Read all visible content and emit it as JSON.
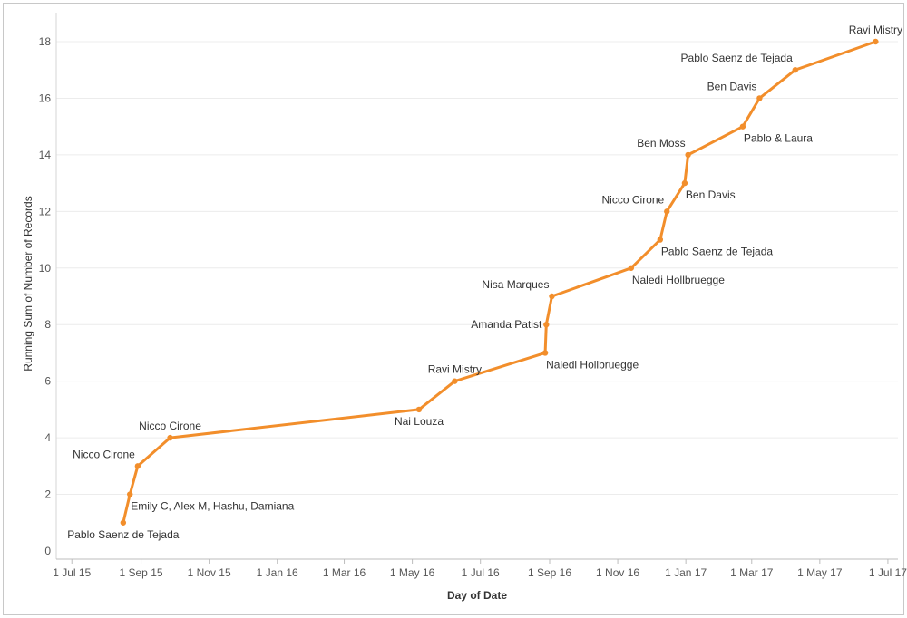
{
  "chart_data": {
    "type": "line",
    "xlabel": "Day of Date",
    "ylabel": "Running Sum of Number of Records",
    "ylim": [
      0,
      18
    ],
    "yticks": [
      0,
      2,
      4,
      6,
      8,
      10,
      12,
      14,
      16,
      18
    ],
    "xlim": [
      "2015-06-17",
      "2017-07-10"
    ],
    "xticks": [
      {
        "date": "2015-07-01",
        "label": "1 Jul 15"
      },
      {
        "date": "2015-09-01",
        "label": "1 Sep 15"
      },
      {
        "date": "2015-11-01",
        "label": "1 Nov 15"
      },
      {
        "date": "2016-01-01",
        "label": "1 Jan 16"
      },
      {
        "date": "2016-03-01",
        "label": "1 Mar 16"
      },
      {
        "date": "2016-05-01",
        "label": "1 May 16"
      },
      {
        "date": "2016-07-01",
        "label": "1 Jul 16"
      },
      {
        "date": "2016-09-01",
        "label": "1 Sep 16"
      },
      {
        "date": "2016-11-01",
        "label": "1 Nov 16"
      },
      {
        "date": "2017-01-01",
        "label": "1 Jan 17"
      },
      {
        "date": "2017-03-01",
        "label": "1 Mar 17"
      },
      {
        "date": "2017-05-01",
        "label": "1 May 17"
      },
      {
        "date": "2017-07-01",
        "label": "1 Jul 17"
      }
    ],
    "grid": true,
    "color": "#F28E2B",
    "series": [
      {
        "points": [
          {
            "x": "2015-08-16",
            "y": 1,
            "label": "Pablo Saenz de Tejada",
            "label_pos": "below"
          },
          {
            "x": "2015-08-22",
            "y": 2,
            "label": "Emily C, Alex M, Hashu, Damiana",
            "label_pos": "below-right"
          },
          {
            "x": "2015-08-29",
            "y": 3,
            "label": "Nicco Cirone",
            "label_pos": "above-left"
          },
          {
            "x": "2015-09-27",
            "y": 4,
            "label": "Nicco Cirone",
            "label_pos": "above"
          },
          {
            "x": "2016-05-07",
            "y": 5,
            "label": "Nai Louza",
            "label_pos": "below"
          },
          {
            "x": "2016-06-08",
            "y": 6,
            "label": "Ravi Mistry",
            "label_pos": "above"
          },
          {
            "x": "2016-08-28",
            "y": 7,
            "label": "Naledi Hollbruegge",
            "label_pos": "below-right"
          },
          {
            "x": "2016-08-29",
            "y": 8,
            "label": "Amanda Patist",
            "label_pos": "left"
          },
          {
            "x": "2016-09-03",
            "y": 9,
            "label": "Nisa Marques",
            "label_pos": "above-left"
          },
          {
            "x": "2016-11-13",
            "y": 10,
            "label": "Naledi Hollbruegge",
            "label_pos": "below-right"
          },
          {
            "x": "2016-12-09",
            "y": 11,
            "label": "Pablo Saenz de Tejada",
            "label_pos": "below-right"
          },
          {
            "x": "2016-12-15",
            "y": 12,
            "label": "Nicco Cirone",
            "label_pos": "above-left"
          },
          {
            "x": "2016-12-31",
            "y": 13,
            "label": "Ben Davis",
            "label_pos": "below-right"
          },
          {
            "x": "2017-01-03",
            "y": 14,
            "label": "Ben Moss",
            "label_pos": "above-left"
          },
          {
            "x": "2017-02-21",
            "y": 15,
            "label": "Pablo & Laura",
            "label_pos": "below-right"
          },
          {
            "x": "2017-03-08",
            "y": 16,
            "label": "Ben Davis",
            "label_pos": "above-left"
          },
          {
            "x": "2017-04-09",
            "y": 17,
            "label": "Pablo Saenz de Tejada",
            "label_pos": "above-left"
          },
          {
            "x": "2017-06-20",
            "y": 18,
            "label": "Ravi Mistry",
            "label_pos": "above"
          }
        ]
      }
    ]
  }
}
